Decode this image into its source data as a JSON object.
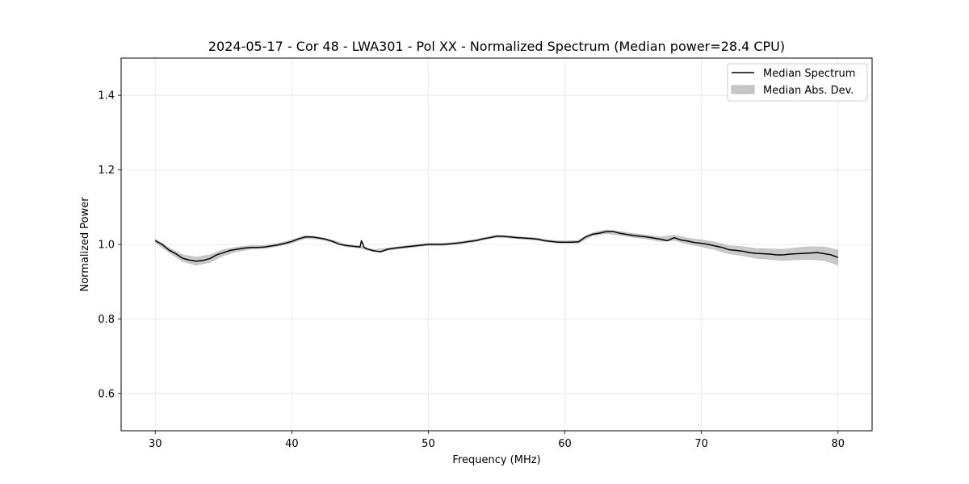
{
  "chart_data": {
    "type": "line",
    "title": "2024-05-17 - Cor 48 - LWA301 - Pol XX - Normalized Spectrum (Median power=28.4 CPU)",
    "xlabel": "Frequency (MHz)",
    "ylabel": "Normalized Power",
    "xlim": [
      27.5,
      82.5
    ],
    "ylim": [
      0.5,
      1.5
    ],
    "xticks": [
      30,
      40,
      50,
      60,
      70,
      80
    ],
    "yticks": [
      0.6,
      0.8,
      1.0,
      1.2,
      1.4
    ],
    "xtick_labels": [
      "30",
      "40",
      "50",
      "60",
      "70",
      "80"
    ],
    "ytick_labels": [
      "0.6",
      "0.8",
      "1.0",
      "1.2",
      "1.4"
    ],
    "grid": true,
    "legend_position": "top-right",
    "legend": [
      "Median Spectrum",
      "Median Abs. Dev."
    ],
    "series": [
      {
        "name": "Median Spectrum",
        "color": "#000000",
        "x": [
          30,
          30.5,
          31,
          31.5,
          32,
          32.5,
          33,
          33.5,
          34,
          34.5,
          35,
          35.5,
          36,
          36.5,
          37,
          37.5,
          38,
          38.5,
          39,
          39.5,
          40,
          40.5,
          41,
          41.5,
          42,
          42.5,
          43,
          43.5,
          44,
          44.5,
          45,
          45.1,
          45.3,
          45.5,
          46,
          46.5,
          47,
          47.5,
          48,
          48.5,
          49,
          49.5,
          50,
          50.5,
          51,
          51.5,
          52,
          52.5,
          53,
          53.5,
          54,
          54.5,
          55,
          55.5,
          56,
          56.5,
          57,
          57.5,
          58,
          58.5,
          59,
          59.5,
          60,
          60.5,
          61,
          61.5,
          62,
          62.5,
          63,
          63.5,
          64,
          64.5,
          65,
          65.5,
          66,
          66.5,
          67,
          67.5,
          68,
          68.5,
          69,
          69.5,
          70,
          70.5,
          71,
          71.5,
          72,
          72.5,
          73,
          73.5,
          74,
          74.5,
          75,
          75.5,
          76,
          76.5,
          77,
          77.5,
          78,
          78.5,
          79,
          79.5,
          80
        ],
        "values": [
          1.01,
          1.0,
          0.985,
          0.975,
          0.963,
          0.958,
          0.955,
          0.957,
          0.962,
          0.972,
          0.978,
          0.984,
          0.987,
          0.99,
          0.992,
          0.992,
          0.993,
          0.996,
          0.999,
          1.003,
          1.008,
          1.015,
          1.02,
          1.02,
          1.017,
          1.014,
          1.008,
          1.0,
          0.997,
          0.995,
          0.993,
          1.01,
          0.992,
          0.988,
          0.983,
          0.98,
          0.987,
          0.99,
          0.992,
          0.994,
          0.996,
          0.998,
          1.0,
          1.0,
          1.0,
          1.001,
          1.003,
          1.005,
          1.008,
          1.01,
          1.015,
          1.018,
          1.022,
          1.022,
          1.02,
          1.018,
          1.017,
          1.016,
          1.014,
          1.01,
          1.008,
          1.006,
          1.006,
          1.006,
          1.007,
          1.02,
          1.027,
          1.03,
          1.034,
          1.035,
          1.03,
          1.027,
          1.024,
          1.022,
          1.02,
          1.017,
          1.014,
          1.01,
          1.018,
          1.012,
          1.009,
          1.005,
          1.003,
          1.0,
          0.996,
          0.992,
          0.986,
          0.984,
          0.982,
          0.978,
          0.976,
          0.975,
          0.974,
          0.972,
          0.972,
          0.974,
          0.975,
          0.976,
          0.977,
          0.978,
          0.975,
          0.972,
          0.965
        ]
      },
      {
        "name": "Median Abs. Dev.",
        "color": "#c6c6c6",
        "x": [
          30,
          31,
          32,
          33,
          34,
          35,
          36,
          37,
          38,
          39,
          40,
          41,
          42,
          43,
          44,
          45,
          46,
          47,
          48,
          49,
          50,
          51,
          52,
          53,
          54,
          55,
          56,
          57,
          58,
          59,
          60,
          61,
          62,
          63,
          64,
          65,
          66,
          67,
          68,
          69,
          70,
          71,
          72,
          73,
          74,
          75,
          76,
          77,
          78,
          79,
          80
        ],
        "mad": [
          0.005,
          0.006,
          0.009,
          0.011,
          0.01,
          0.008,
          0.006,
          0.005,
          0.004,
          0.004,
          0.004,
          0.004,
          0.003,
          0.003,
          0.003,
          0.003,
          0.003,
          0.003,
          0.003,
          0.003,
          0.003,
          0.003,
          0.003,
          0.003,
          0.003,
          0.003,
          0.003,
          0.003,
          0.003,
          0.003,
          0.003,
          0.004,
          0.004,
          0.005,
          0.005,
          0.005,
          0.005,
          0.006,
          0.007,
          0.008,
          0.009,
          0.01,
          0.011,
          0.012,
          0.013,
          0.014,
          0.015,
          0.016,
          0.017,
          0.018,
          0.02
        ]
      }
    ]
  }
}
